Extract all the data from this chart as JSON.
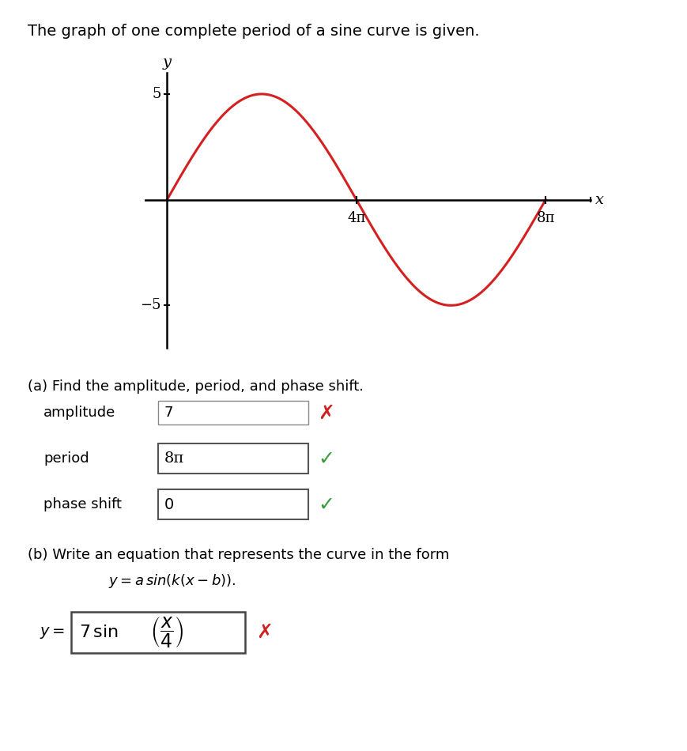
{
  "title_text": "The graph of one complete period of a sine curve is given.",
  "curve_color": "#d42020",
  "curve_linewidth": 2.2,
  "amplitude": 5,
  "background_color": "#ffffff",
  "part_a_title": "(a) Find the amplitude, period, and phase shift.",
  "amplitude_label": "amplitude",
  "amplitude_value": "7",
  "period_label": "period",
  "period_value": "8π",
  "phase_shift_label": "phase shift",
  "phase_shift_value": "0",
  "part_b_title": "(b) Write an equation that represents the curve in the form",
  "equation_form": "$y = a\\,\\sin(k(x - b)).$",
  "answer_label": "$y =$",
  "check_color_green": "#3a9a3a",
  "check_color_red": "#cc2222",
  "x_tick_labels": [
    "4π",
    "8π"
  ],
  "y_tick_pos": [
    5,
    -5
  ],
  "y_tick_labels": [
    "5",
    "−5"
  ]
}
